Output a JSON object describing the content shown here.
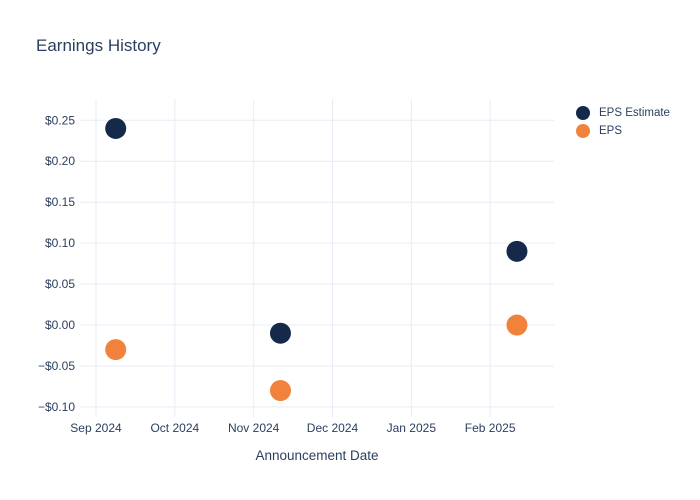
{
  "title": "Earnings History",
  "colors": {
    "text": "#2a3f5f",
    "grid": "#e7ecf4",
    "background": "#ffffff"
  },
  "chart_data": {
    "type": "scatter",
    "title": "Earnings History",
    "xlabel": "Announcement Date",
    "ylabel": "",
    "grid": true,
    "legend_position": "top-right",
    "x_unit": "months offset from Sep 2024 gridline",
    "x_ticks": [
      {
        "value": 0,
        "label": "Sep 2024"
      },
      {
        "value": 1,
        "label": "Oct 2024"
      },
      {
        "value": 2,
        "label": "Nov 2024"
      },
      {
        "value": 3,
        "label": "Dec 2024"
      },
      {
        "value": 4,
        "label": "Jan 2025"
      },
      {
        "value": 5,
        "label": "Feb 2025"
      }
    ],
    "y_ticks": [
      {
        "value": 0.25,
        "label": "$0.25"
      },
      {
        "value": 0.2,
        "label": "$0.20"
      },
      {
        "value": 0.15,
        "label": "$0.15"
      },
      {
        "value": 0.1,
        "label": "$0.10"
      },
      {
        "value": 0.05,
        "label": "$0.05"
      },
      {
        "value": 0.0,
        "label": "$0.00"
      },
      {
        "value": -0.05,
        "label": "−$0.05"
      },
      {
        "value": -0.1,
        "label": "−$0.10"
      }
    ],
    "xlim": [
      -0.203,
      5.81
    ],
    "ylim": [
      -0.1123,
      0.276
    ],
    "marker_radius": 10.5,
    "series": [
      {
        "name": "EPS Estimate",
        "color": "#152a4b",
        "marker": "circle",
        "points": [
          {
            "x": 0.25,
            "y": 0.24
          },
          {
            "x": 2.34,
            "y": -0.01
          },
          {
            "x": 5.34,
            "y": 0.09
          }
        ]
      },
      {
        "name": "EPS",
        "color": "#f0823c",
        "marker": "circle",
        "points": [
          {
            "x": 0.25,
            "y": -0.03
          },
          {
            "x": 2.34,
            "y": -0.08
          },
          {
            "x": 5.34,
            "y": 0.0
          }
        ]
      }
    ]
  }
}
